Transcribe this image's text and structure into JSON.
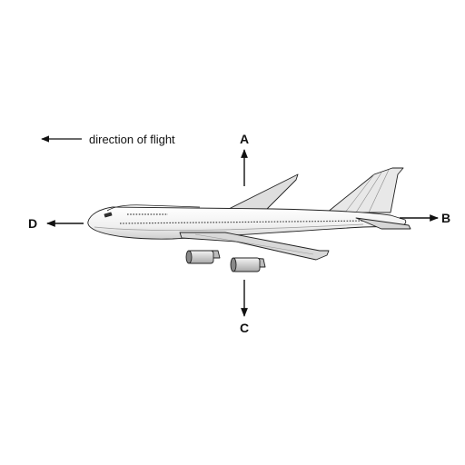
{
  "caption": "direction of flight",
  "labels": {
    "a": "A",
    "b": "B",
    "c": "C",
    "d": "D"
  },
  "colors": {
    "ink": "#111111",
    "fuselage": "#f2f2f2",
    "wing": "#dcdcdc",
    "engine": "#cfcfcf"
  },
  "icons": {
    "flight-arrow": "left-arrow-icon",
    "airplane": "airplane-icon"
  }
}
